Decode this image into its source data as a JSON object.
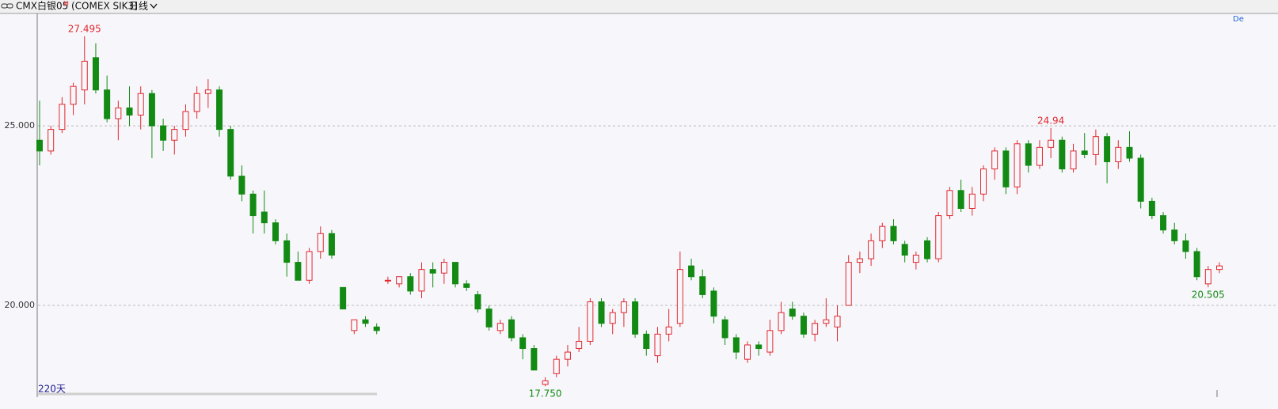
{
  "header": {
    "symbol": "CMX白银05",
    "badge": "M",
    "code": "(COMEX SIK3)",
    "period": "日线",
    "corner": "De"
  },
  "chart_data": {
    "type": "candlestick",
    "ylim": [
      17.49,
      28.13
    ],
    "yticks": [
      {
        "value": 25,
        "label": "25.000"
      },
      {
        "value": 20,
        "label": "20.000"
      }
    ],
    "grid": true,
    "up_color": "#e0282e",
    "down_color": "#138a13",
    "span_label": "220天",
    "annotations": [
      27.495,
      24.94,
      {
        "value": 17.75,
        "label": "17.750"
      },
      20.505
    ],
    "open": [
      24.6,
      24.3,
      24.9,
      25.6,
      26.0,
      26.9,
      26.0,
      25.2,
      25.5,
      25.3,
      25.9,
      25.0,
      24.6,
      24.9,
      25.4,
      25.9,
      26.0,
      24.9,
      23.6,
      23.1,
      22.6,
      22.3,
      21.8,
      21.2,
      20.7,
      21.5,
      22.0,
      20.5,
      19.3,
      19.6,
      19.4,
      20.7,
      20.6,
      20.8,
      20.4,
      21.0,
      20.9,
      21.2,
      20.6,
      20.3,
      19.9,
      19.3,
      19.6,
      19.1,
      18.8,
      17.8,
      18.1,
      18.5,
      18.8,
      19.0,
      20.1,
      19.5,
      19.8,
      20.1,
      19.2,
      18.6,
      19.2,
      19.5,
      21.1,
      20.8,
      20.4,
      19.6,
      19.1,
      18.5,
      18.9,
      18.7,
      19.3,
      19.9,
      19.7,
      19.2,
      19.5,
      19.4,
      20.0,
      21.2,
      21.3,
      21.8,
      22.2,
      21.7,
      21.2,
      21.8,
      21.3,
      22.5,
      23.2,
      22.7,
      23.1,
      23.8,
      24.3,
      23.3,
      24.5,
      23.9,
      24.4,
      24.6,
      23.8,
      24.3,
      24.2,
      24.7,
      24.0,
      24.4,
      24.1,
      22.9,
      22.5,
      22.1,
      21.8,
      21.5,
      20.6,
      21.0
    ],
    "high": [
      25.7,
      25.0,
      25.8,
      26.2,
      27.495,
      27.3,
      26.4,
      25.7,
      26.1,
      26.1,
      26.0,
      25.2,
      25.0,
      25.6,
      26.1,
      26.3,
      26.1,
      25.0,
      23.9,
      23.2,
      23.2,
      22.4,
      22.0,
      21.5,
      21.6,
      22.2,
      22.1,
      20.5,
      19.6,
      19.7,
      19.5,
      20.8,
      20.8,
      20.9,
      21.2,
      21.2,
      21.3,
      21.2,
      20.7,
      20.4,
      20.0,
      19.6,
      19.7,
      19.2,
      18.9,
      18.0,
      18.6,
      18.9,
      19.4,
      20.2,
      20.2,
      19.9,
      20.2,
      20.2,
      19.3,
      19.4,
      19.9,
      21.5,
      21.3,
      21.0,
      20.5,
      19.7,
      19.2,
      19.0,
      19.0,
      19.6,
      20.1,
      20.1,
      19.8,
      19.6,
      20.2,
      20.0,
      21.4,
      21.5,
      22.0,
      22.3,
      22.4,
      21.8,
      21.5,
      21.9,
      22.6,
      23.3,
      23.5,
      23.3,
      23.9,
      24.4,
      24.4,
      24.6,
      24.6,
      24.6,
      24.94,
      24.7,
      24.5,
      24.8,
      24.9,
      24.8,
      24.6,
      24.85,
      24.2,
      23.0,
      22.6,
      22.3,
      22.0,
      21.6,
      21.1,
      21.2
    ],
    "low": [
      23.9,
      24.2,
      24.8,
      25.3,
      25.6,
      25.9,
      25.1,
      24.6,
      25.0,
      24.9,
      24.1,
      24.3,
      24.2,
      24.7,
      25.2,
      25.5,
      24.7,
      23.5,
      22.9,
      22.0,
      22.0,
      21.7,
      20.8,
      20.7,
      20.6,
      21.3,
      21.3,
      19.9,
      19.2,
      19.4,
      19.2,
      20.6,
      20.5,
      20.3,
      20.2,
      20.5,
      20.6,
      20.5,
      20.4,
      19.8,
      19.3,
      19.2,
      19.0,
      18.5,
      18.2,
      17.75,
      18.0,
      18.3,
      18.7,
      18.9,
      19.4,
      19.2,
      19.4,
      19.1,
      18.6,
      18.4,
      19.0,
      19.4,
      20.7,
      20.2,
      19.5,
      18.9,
      18.5,
      18.4,
      18.6,
      18.6,
      19.2,
      19.6,
      19.1,
      19.0,
      19.4,
      19.0,
      20.0,
      20.9,
      21.1,
      21.6,
      21.7,
      21.2,
      21.0,
      21.2,
      21.2,
      22.4,
      22.6,
      22.5,
      22.9,
      23.5,
      23.1,
      23.1,
      23.7,
      23.8,
      24.1,
      23.7,
      23.7,
      24.1,
      23.9,
      23.4,
      23.8,
      24.0,
      22.7,
      22.4,
      22.0,
      21.7,
      21.3,
      20.7,
      20.505,
      20.9
    ],
    "close": [
      24.3,
      24.9,
      25.6,
      26.1,
      26.8,
      26.0,
      25.2,
      25.5,
      25.3,
      25.9,
      25.0,
      24.6,
      24.9,
      25.4,
      25.9,
      26.0,
      24.9,
      23.6,
      23.1,
      22.5,
      22.3,
      21.8,
      21.2,
      20.7,
      21.5,
      22.0,
      21.4,
      19.9,
      19.6,
      19.5,
      19.3,
      20.7,
      20.8,
      20.4,
      21.0,
      20.9,
      21.2,
      20.6,
      20.5,
      19.9,
      19.4,
      19.5,
      19.1,
      18.8,
      18.2,
      17.9,
      18.5,
      18.7,
      19.0,
      20.1,
      19.5,
      19.8,
      20.1,
      19.2,
      18.8,
      19.2,
      19.4,
      21.0,
      20.8,
      20.3,
      19.7,
      19.1,
      18.7,
      18.9,
      18.8,
      19.3,
      19.8,
      19.7,
      19.2,
      19.5,
      19.6,
      19.7,
      21.2,
      21.3,
      21.8,
      22.2,
      21.8,
      21.4,
      21.4,
      21.3,
      22.5,
      23.2,
      22.7,
      23.1,
      23.8,
      24.3,
      23.3,
      24.5,
      23.9,
      24.4,
      24.6,
      23.8,
      24.3,
      24.2,
      24.7,
      24.0,
      24.4,
      24.1,
      22.9,
      22.5,
      22.1,
      21.8,
      21.5,
      20.8,
      21.0,
      21.1
    ]
  }
}
